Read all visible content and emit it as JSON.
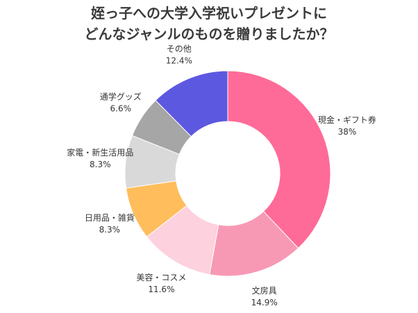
{
  "chart_data": {
    "type": "donut",
    "title": "姪っ子への大学入学祝いプレゼントに\nどんなジャンルのものを贈りましたか？",
    "categories": [
      "現金・ギフト券",
      "文房具",
      "美容・コスメ",
      "日用品・雑貨",
      "家電・新生活用品",
      "通学グッズ",
      "その他"
    ],
    "values": [
      38,
      14.9,
      11.6,
      8.3,
      8.3,
      6.6,
      12.4
    ],
    "value_labels": [
      "38%",
      "14.9%",
      "11.6%",
      "8.3%",
      "8.3%",
      "6.6%",
      "12.4%"
    ],
    "colors": [
      "#ff6b98",
      "#f799b5",
      "#fdd1dd",
      "#ffbd5c",
      "#d9d9d9",
      "#a6a6a6",
      "#5d58e0"
    ]
  }
}
